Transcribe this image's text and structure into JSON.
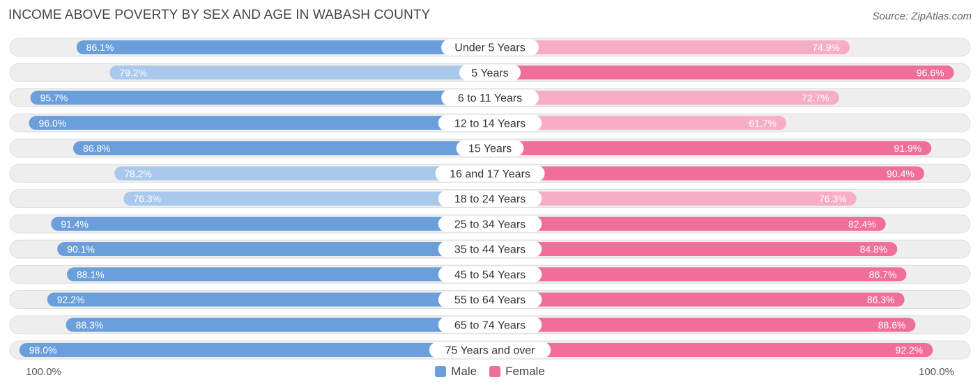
{
  "title": "INCOME ABOVE POVERTY BY SEX AND AGE IN WABASH COUNTY",
  "source": "Source: ZipAtlas.com",
  "colors": {
    "male_strong": "#6a9fdc",
    "male_light": "#a8c8ec",
    "female_strong": "#f06f9a",
    "female_light": "#f7adc6",
    "track": "#eeeeee",
    "track_border": "#dddddd"
  },
  "legend": {
    "male_label": "Male",
    "female_label": "Female"
  },
  "axis": {
    "left_label": "100.0%",
    "right_label": "100.0%"
  },
  "chart_data": {
    "type": "bar",
    "orientation": "horizontal-diverging",
    "title": "INCOME ABOVE POVERTY BY SEX AND AGE IN WABASH COUNTY",
    "xlim": [
      0,
      100
    ],
    "categories": [
      "Under 5 Years",
      "5 Years",
      "6 to 11 Years",
      "12 to 14 Years",
      "15 Years",
      "16 and 17 Years",
      "18 to 24 Years",
      "25 to 34 Years",
      "35 to 44 Years",
      "45 to 54 Years",
      "55 to 64 Years",
      "65 to 74 Years",
      "75 Years and over"
    ],
    "series": [
      {
        "name": "Male",
        "values": [
          86.1,
          79.2,
          95.7,
          96.0,
          86.8,
          78.2,
          76.3,
          91.4,
          90.1,
          88.1,
          92.2,
          88.3,
          98.0
        ],
        "labels": [
          "86.1%",
          "79.2%",
          "95.7%",
          "96.0%",
          "86.8%",
          "78.2%",
          "76.3%",
          "91.4%",
          "90.1%",
          "88.1%",
          "92.2%",
          "88.3%",
          "98.0%"
        ]
      },
      {
        "name": "Female",
        "values": [
          74.9,
          96.6,
          72.7,
          61.7,
          91.9,
          90.4,
          76.3,
          82.4,
          84.8,
          86.7,
          86.3,
          88.6,
          92.2
        ],
        "labels": [
          "74.9%",
          "96.6%",
          "72.7%",
          "61.7%",
          "91.9%",
          "90.4%",
          "76.3%",
          "82.4%",
          "84.8%",
          "86.7%",
          "86.3%",
          "88.6%",
          "92.2%"
        ]
      }
    ]
  }
}
